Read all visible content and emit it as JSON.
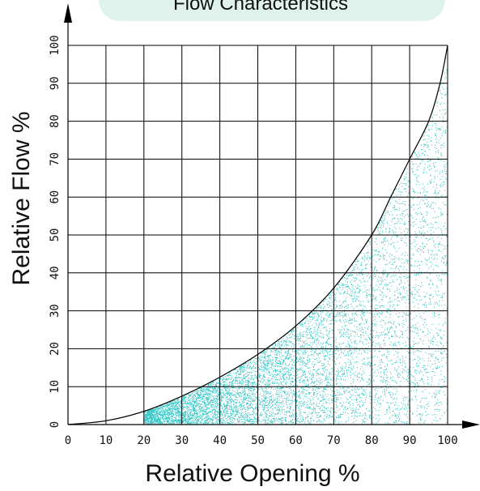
{
  "chart_data": {
    "type": "area",
    "title": "Flow Characteristics",
    "xlabel": "Relative Opening %",
    "ylabel": "Relative Flow %",
    "xlim": [
      0,
      100
    ],
    "ylim": [
      0,
      100
    ],
    "x_ticks": [
      "0",
      "10",
      "20",
      "30",
      "40",
      "50",
      "60",
      "70",
      "80",
      "90",
      "100"
    ],
    "y_ticks": [
      "0",
      "10",
      "20",
      "30",
      "40",
      "50",
      "60",
      "70",
      "80",
      "90",
      "100"
    ],
    "grid": true,
    "series": [
      {
        "x": [
          0,
          10,
          20,
          30,
          40,
          50,
          60,
          70,
          80,
          85,
          90,
          95,
          98,
          100
        ],
        "y": [
          0,
          1,
          3.5,
          7.5,
          12.5,
          18.5,
          26,
          36,
          50,
          60,
          70,
          80,
          90,
          100
        ]
      }
    ],
    "colors": {
      "fill_dots": "#3cc8c8",
      "title_bg": "#dff2ec",
      "lines": "#000000"
    }
  }
}
